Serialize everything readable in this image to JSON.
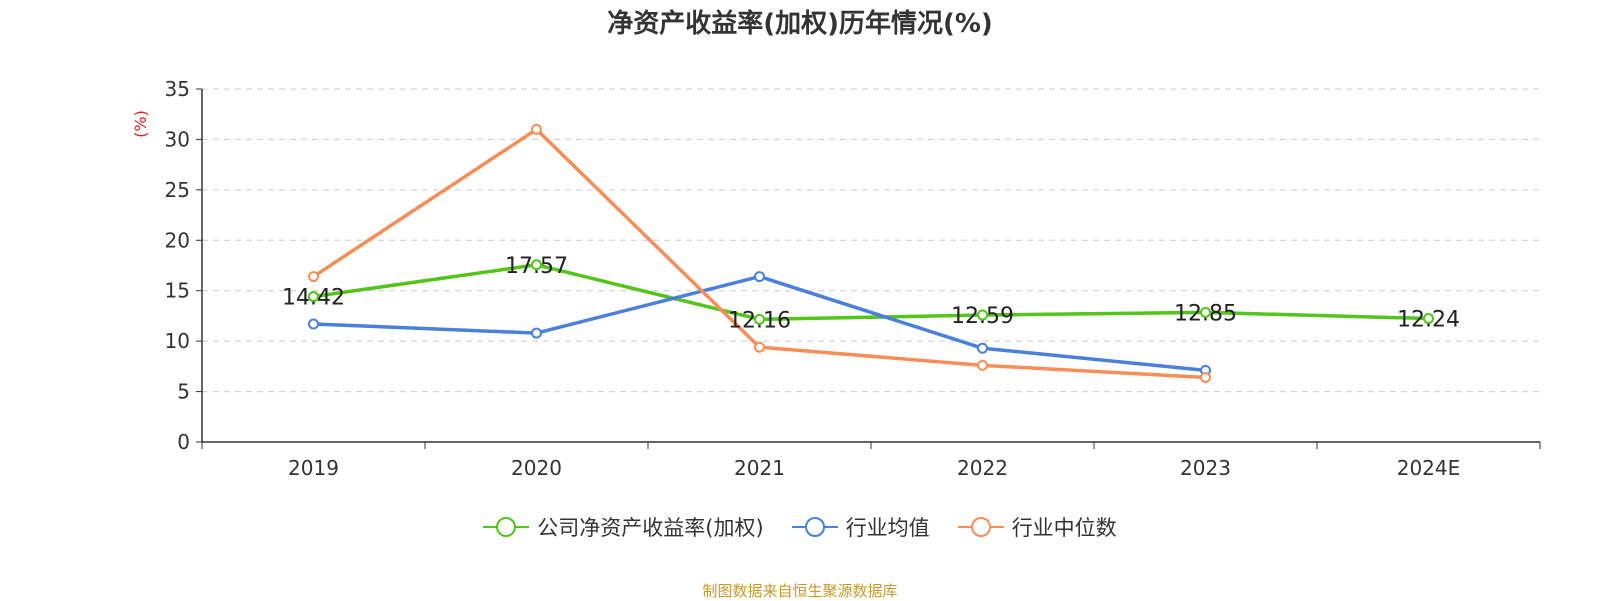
{
  "chart_data": {
    "type": "line",
    "title": "净资产收益率(加权)历年情况(%)",
    "ylabel": "(%)",
    "xlabel": "",
    "categories": [
      "2019",
      "2020",
      "2021",
      "2022",
      "2023",
      "2024E"
    ],
    "ylim": [
      0,
      35
    ],
    "yticks": [
      0,
      5,
      10,
      15,
      20,
      25,
      30,
      35
    ],
    "grid": true,
    "legend_position": "bottom",
    "series": [
      {
        "name": "公司净资产收益率(加权)",
        "color": "#52c41a",
        "values": [
          14.42,
          17.57,
          12.16,
          12.59,
          12.85,
          12.24
        ],
        "labels": true
      },
      {
        "name": "行业均值",
        "color": "#4a7fdc",
        "values": [
          11.7,
          10.8,
          16.4,
          9.3,
          7.1,
          null
        ],
        "labels": false
      },
      {
        "name": "行业中位数",
        "color": "#f88d58",
        "values": [
          16.4,
          31.0,
          9.4,
          7.6,
          6.4,
          null
        ],
        "labels": false
      }
    ]
  },
  "source": "制图数据来自恒生聚源数据库"
}
